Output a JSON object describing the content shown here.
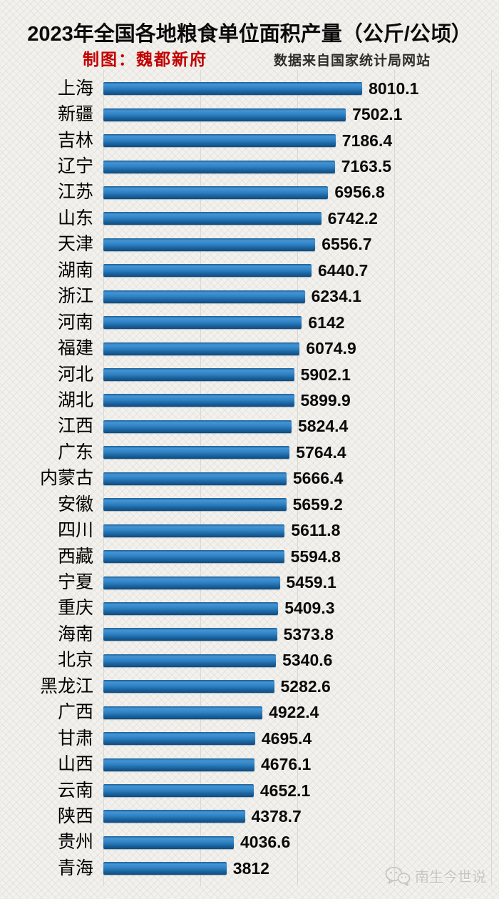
{
  "header": {
    "title": "2023年全国各地粮食单位面积产量（公斤/公顷）",
    "credit": "制图：魏都新府",
    "source": "数据来自国家统计局网站"
  },
  "watermark": {
    "icon": "wechat-icon",
    "text": "南生今世说"
  },
  "colors": {
    "background": "#f2f1ed",
    "bar_blue_light": "#4494d4",
    "bar_blue_mid": "#2e81c3",
    "bar_blue_dark": "#114b7e",
    "credit_red": "#c20000",
    "gridline": "#dbd8d2",
    "text": "#0a0a0a",
    "watermark_gray": "#c6c4bf"
  },
  "chart_data": {
    "type": "bar",
    "orientation": "horizontal",
    "title": "2023年全国各地粮食单位面积产量（公斤/公顷）",
    "xlabel": "",
    "ylabel": "",
    "unit": "公斤/公顷",
    "xlim": [
      0,
      12000
    ],
    "gridline_interval": 3000,
    "grid": "vertical-major-only",
    "legend": "none",
    "value_labels": "end-of-bar",
    "categories": [
      "上海",
      "新疆",
      "吉林",
      "辽宁",
      "江苏",
      "山东",
      "天津",
      "湖南",
      "浙江",
      "河南",
      "福建",
      "河北",
      "湖北",
      "江西",
      "广东",
      "内蒙古",
      "安徽",
      "四川",
      "西藏",
      "宁夏",
      "重庆",
      "海南",
      "北京",
      "黑龙江",
      "广西",
      "甘肃",
      "山西",
      "云南",
      "陕西",
      "贵州",
      "青海"
    ],
    "values": [
      8010.1,
      7502.1,
      7186.4,
      7163.5,
      6956.8,
      6742.2,
      6556.7,
      6440.7,
      6234.1,
      6142,
      6074.9,
      5902.1,
      5899.9,
      5824.4,
      5764.4,
      5666.4,
      5659.2,
      5611.8,
      5594.8,
      5459.1,
      5409.3,
      5373.8,
      5340.6,
      5282.6,
      4922.4,
      4695.4,
      4676.1,
      4652.1,
      4378.7,
      4036.6,
      3812
    ]
  }
}
